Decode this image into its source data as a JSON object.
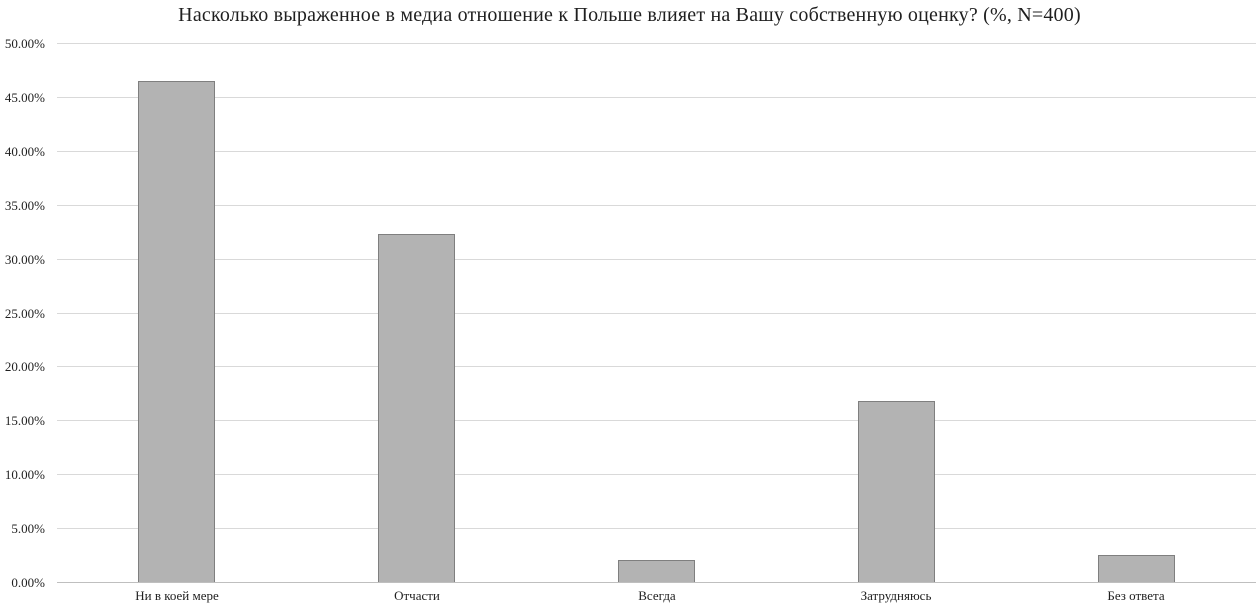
{
  "chart_data": {
    "type": "bar",
    "title": "Насколько выраженное в медиа отношение к Польше влияет на Вашу собственную оценку? (%, N=400)",
    "categories": [
      "Ни в коей мере",
      "Отчасти",
      "Всегда",
      "Затрудняюсь",
      "Без ответа"
    ],
    "values": [
      46.5,
      32.25,
      2.0,
      16.75,
      2.5
    ],
    "ylim": [
      0,
      50
    ],
    "ytick_step": 5,
    "ytick_labels": [
      "0.00%",
      "5.00%",
      "10.00%",
      "15.00%",
      "20.00%",
      "25.00%",
      "30.00%",
      "35.00%",
      "40.00%",
      "45.00%",
      "50.00%"
    ],
    "xlabel": "",
    "ylabel": "",
    "grid": "horizontal",
    "legend": "none",
    "colors": {
      "bar_fill": "#b3b3b3",
      "bar_border": "#7f7f7f",
      "gridline": "#d9d9d9",
      "axis_line": "#bfbfbf",
      "text": "#1f1f1f",
      "background": "#ffffff"
    }
  }
}
